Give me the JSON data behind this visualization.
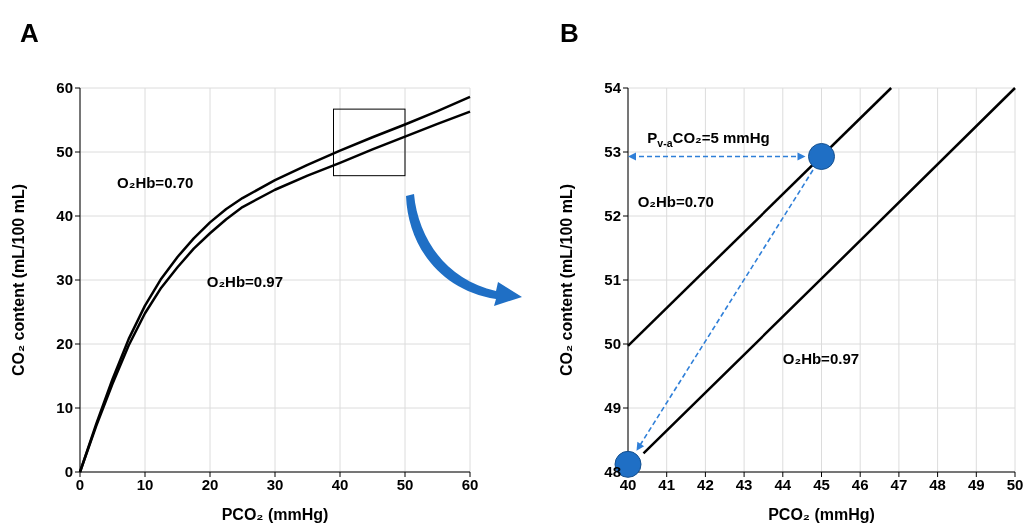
{
  "chart_data": [
    {
      "type": "line",
      "title": "A",
      "xlabel": "PCO₂ (mmHg)",
      "ylabel": "CO₂ content (mL/100 mL)",
      "xlim": [
        0,
        60
      ],
      "ylim": [
        0,
        60
      ],
      "xticks": [
        0,
        10,
        20,
        30,
        40,
        50,
        60
      ],
      "yticks": [
        0,
        10,
        20,
        30,
        40,
        50,
        60
      ],
      "grid": true,
      "marker": "none",
      "line_style": "solid",
      "series": [
        {
          "color": "#000000",
          "x": [
            0,
            2.5,
            5,
            7.5,
            10,
            12.5,
            15,
            17.5,
            20,
            22.5,
            25,
            30,
            35,
            40,
            45,
            50,
            55,
            60
          ],
          "values": [
            0,
            7.5,
            14.5,
            20.8,
            26,
            30.2,
            33.6,
            36.5,
            39,
            41.1,
            42.8,
            45.6,
            48,
            50.2,
            52.3,
            54.3,
            56.4,
            58.6
          ]
        },
        {
          "color": "#000000",
          "x": [
            0,
            2.5,
            5,
            7.5,
            10,
            12.5,
            15,
            17.5,
            20,
            22.5,
            25,
            30,
            35,
            40,
            45,
            50,
            55,
            60
          ],
          "values": [
            0,
            7.2,
            13.8,
            19.8,
            24.8,
            28.8,
            32,
            34.9,
            37.3,
            39.5,
            41.4,
            44.1,
            46.3,
            48.3,
            50.4,
            52.4,
            54.4,
            56.3
          ]
        }
      ],
      "annotations": [
        "O₂Hb=0.70",
        "O₂Hb=0.97"
      ]
    },
    {
      "type": "line",
      "title": "B",
      "xlabel": "PCO₂ (mmHg)",
      "ylabel": "CO₂ content (mL/100 mL)",
      "xlim": [
        40,
        50
      ],
      "ylim": [
        48,
        54
      ],
      "xticks": [
        40,
        41,
        42,
        43,
        44,
        45,
        46,
        47,
        48,
        49,
        50
      ],
      "yticks": [
        48,
        49,
        50,
        51,
        52,
        53,
        54
      ],
      "grid": true,
      "marker": "none",
      "line_style": "solid",
      "series": [
        {
          "color": "#000000",
          "x": [
            40,
            46.8
          ],
          "values": [
            49.97,
            54
          ]
        },
        {
          "color": "#000000",
          "x": [
            40.4,
            45,
            50
          ],
          "values": [
            48.29,
            51.02,
            54
          ]
        },
        {
          "type": "scatter",
          "marker": "circle",
          "color": "#1f6fc5",
          "x": [
            45,
            40
          ],
          "values": [
            52.93,
            48.12
          ]
        }
      ],
      "annotations": [
        "P$_{v-a}$CO₂=5 mmHg",
        "O₂Hb=0.70",
        "O₂Hb=0.97"
      ]
    }
  ]
}
